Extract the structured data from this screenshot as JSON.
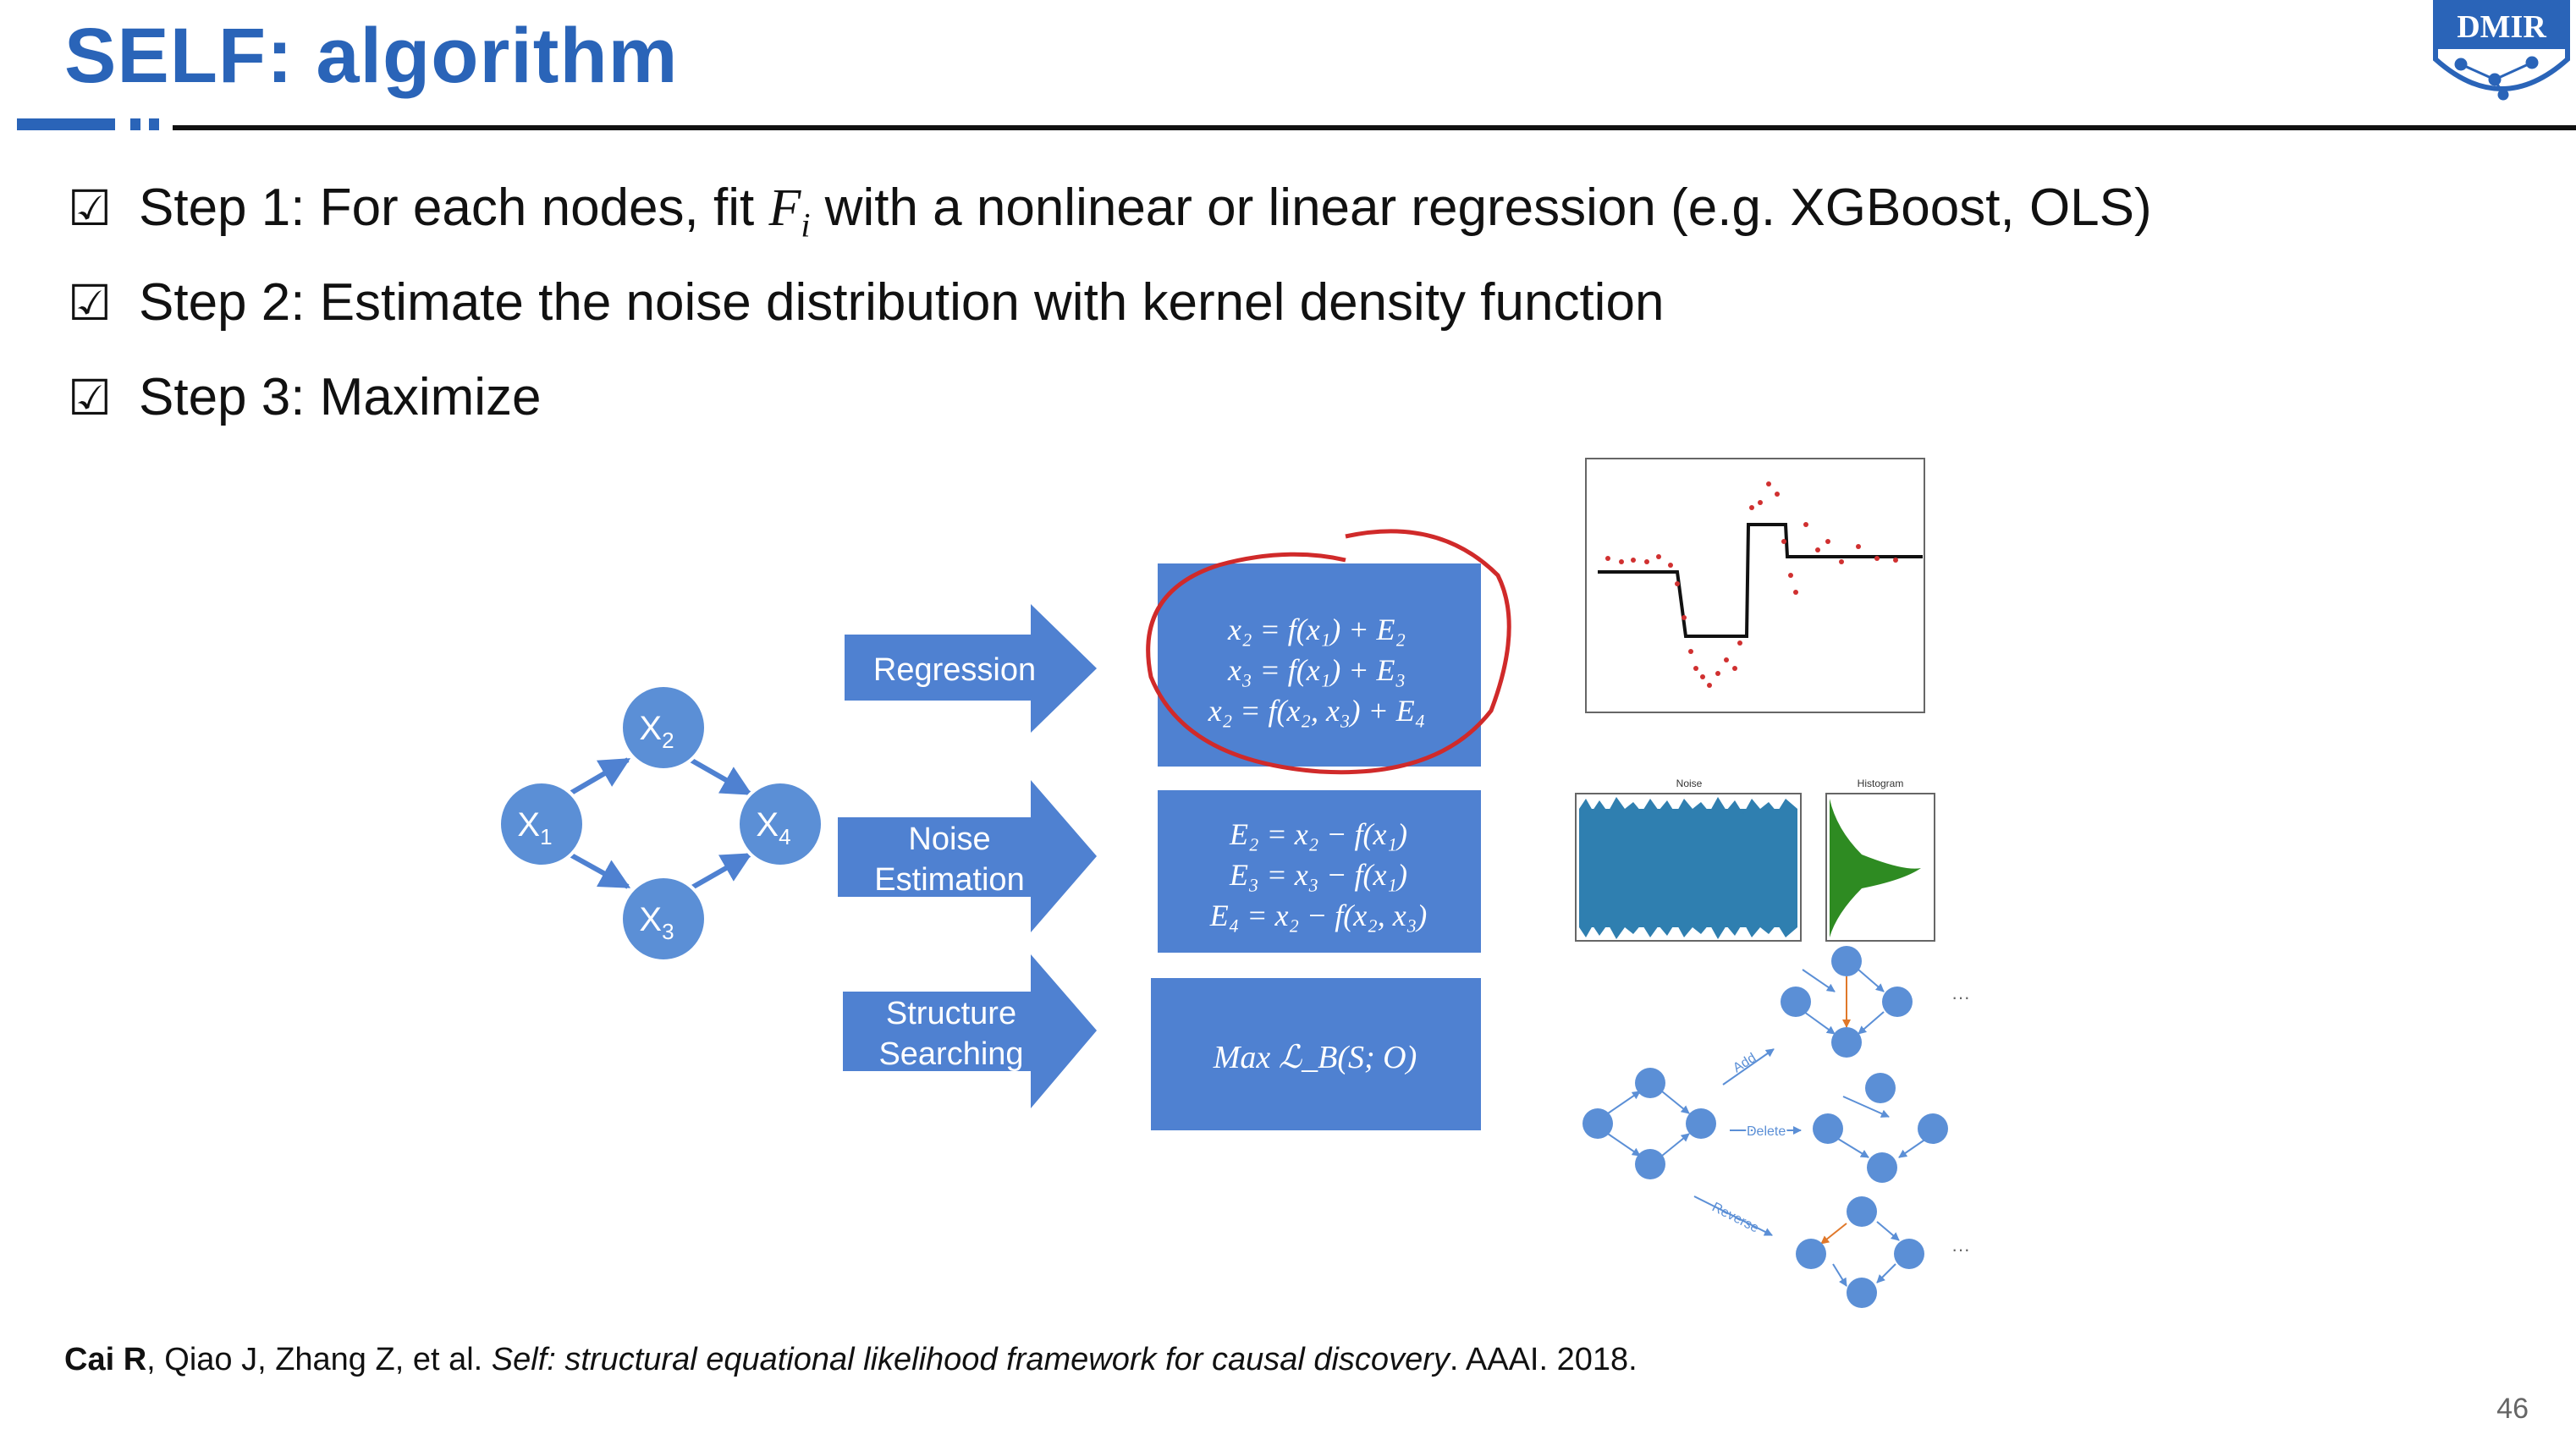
{
  "title": "SELF: algorithm",
  "logo_text": "DMIR",
  "steps": [
    {
      "check": "☑",
      "before": "Step 1: For each nodes, fit ",
      "math": "F",
      "sub": "i",
      "after": " with a nonlinear or linear regression (e.g. XGBoost, OLS)"
    },
    {
      "check": "☑",
      "text": "Step 2: Estimate the noise distribution with kernel density function"
    },
    {
      "check": "☑",
      "text": "Step 3: Maximize"
    }
  ],
  "graph": {
    "x1": "X",
    "x1_sub": "1",
    "x2": "X",
    "x2_sub": "2",
    "x3": "X",
    "x3_sub": "3",
    "x4": "X",
    "x4_sub": "4"
  },
  "arrows": {
    "regression": "Regression",
    "noise_1": "Noise",
    "noise_2": "Estimation",
    "structure_1": "Structure",
    "structure_2": "Searching"
  },
  "boxes": {
    "regression": [
      "x₂ = f(x₁) + E₂",
      "x₃ = f(x₁) + E₃",
      "x₂ = f(x₂, x₃) + E₄"
    ],
    "noise": [
      "E₂ = x₂ − f(x₁)",
      "E₃ =  x₃ − f(x₁)",
      "E₄ = x₂ − f(x₂, x₃)"
    ],
    "structure": "Max ℒ_B(S; O)"
  },
  "thumbs": {
    "noise_title": "Noise",
    "hist_title": "Histogram",
    "add": "Add",
    "delete": "Delete",
    "reverse": "Reverse",
    "ellipsis": "···"
  },
  "reference": {
    "authors_bold": "Cai R",
    "authors_rest": ", Qiao J, Zhang Z, et al. ",
    "title_italic": "Self: structural equational likelihood framework for causal discovery",
    "venue": ". AAAI. 2018."
  },
  "page_number": "46",
  "colors": {
    "title_blue": "#2a64b8",
    "box_blue": "#4f81d1",
    "node_blue": "#5b8fd6",
    "circle_red": "#d02a2a",
    "green": "#2e8b22",
    "teal": "#3a7fb0"
  }
}
